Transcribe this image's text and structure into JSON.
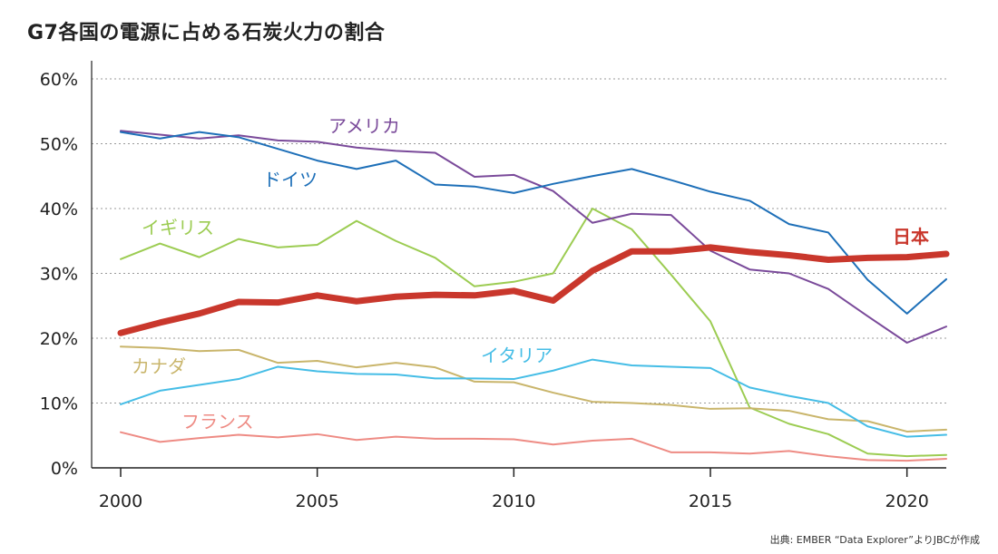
{
  "chart_data": {
    "type": "line",
    "title": "G7各国の電源に占める石炭火力の割合",
    "source": "出典: EMBER “Data Explorer”よりJBCが作成",
    "x": [
      2000,
      2001,
      2002,
      2003,
      2004,
      2005,
      2006,
      2007,
      2008,
      2009,
      2010,
      2011,
      2012,
      2013,
      2014,
      2015,
      2016,
      2017,
      2018,
      2019,
      2020,
      2021
    ],
    "xticks": [
      2000,
      2005,
      2010,
      2015,
      2020
    ],
    "yticks": [
      0,
      10,
      20,
      30,
      40,
      50,
      60
    ],
    "ytick_labels": [
      "0%",
      "10%",
      "20%",
      "30%",
      "40%",
      "50%",
      "60%"
    ],
    "xlim": [
      2000,
      2021
    ],
    "ylim": [
      0,
      60
    ],
    "grid": "horizontal dotted",
    "series": [
      {
        "name": "アメリカ",
        "color": "#7a4a9a",
        "width": 2,
        "values": [
          52.0,
          51.4,
          50.8,
          51.3,
          50.5,
          50.3,
          49.4,
          48.9,
          48.6,
          44.9,
          45.2,
          42.7,
          37.8,
          39.2,
          39.0,
          33.5,
          30.6,
          30.0,
          27.6,
          23.4,
          19.3,
          21.8
        ]
      },
      {
        "name": "ドイツ",
        "color": "#1d6fb8",
        "width": 2,
        "values": [
          51.8,
          50.8,
          51.8,
          51.0,
          49.2,
          47.4,
          46.1,
          47.4,
          43.7,
          43.4,
          42.4,
          43.8,
          45.0,
          46.1,
          44.4,
          42.6,
          41.2,
          37.6,
          36.3,
          29.0,
          23.8,
          29.1
        ]
      },
      {
        "name": "イギリス",
        "color": "#9ccc52",
        "width": 2,
        "values": [
          32.2,
          34.6,
          32.5,
          35.3,
          34.0,
          34.4,
          38.1,
          35.0,
          32.4,
          28.0,
          28.7,
          30.0,
          40.0,
          36.8,
          29.8,
          22.6,
          9.3,
          6.8,
          5.2,
          2.2,
          1.8,
          2.0
        ]
      },
      {
        "name": "日本",
        "color": "#c9372c",
        "width": 7,
        "values": [
          20.8,
          22.4,
          23.8,
          25.6,
          25.5,
          26.6,
          25.7,
          26.4,
          26.7,
          26.6,
          27.3,
          25.8,
          30.4,
          33.4,
          33.4,
          34.0,
          33.3,
          32.8,
          32.1,
          32.4,
          32.5,
          33.0
        ]
      },
      {
        "name": "イタリア",
        "color": "#45bde6",
        "width": 2,
        "values": [
          9.8,
          11.9,
          12.8,
          13.7,
          15.6,
          14.9,
          14.5,
          14.4,
          13.8,
          13.8,
          13.7,
          15.0,
          16.7,
          15.8,
          15.6,
          15.4,
          12.4,
          11.1,
          10.0,
          6.4,
          4.8,
          5.1
        ]
      },
      {
        "name": "カナダ",
        "color": "#c9b56b",
        "width": 2,
        "values": [
          18.7,
          18.5,
          18.0,
          18.2,
          16.2,
          16.5,
          15.5,
          16.2,
          15.5,
          13.3,
          13.2,
          11.6,
          10.2,
          10.0,
          9.7,
          9.1,
          9.2,
          8.8,
          7.5,
          7.2,
          5.6,
          5.9
        ]
      },
      {
        "name": "フランス",
        "color": "#ee8b84",
        "width": 2,
        "values": [
          5.5,
          4.0,
          4.6,
          5.1,
          4.7,
          5.2,
          4.3,
          4.8,
          4.5,
          4.5,
          4.4,
          3.6,
          4.2,
          4.5,
          2.4,
          2.4,
          2.2,
          2.6,
          1.8,
          1.2,
          1.1,
          1.4
        ]
      }
    ]
  }
}
